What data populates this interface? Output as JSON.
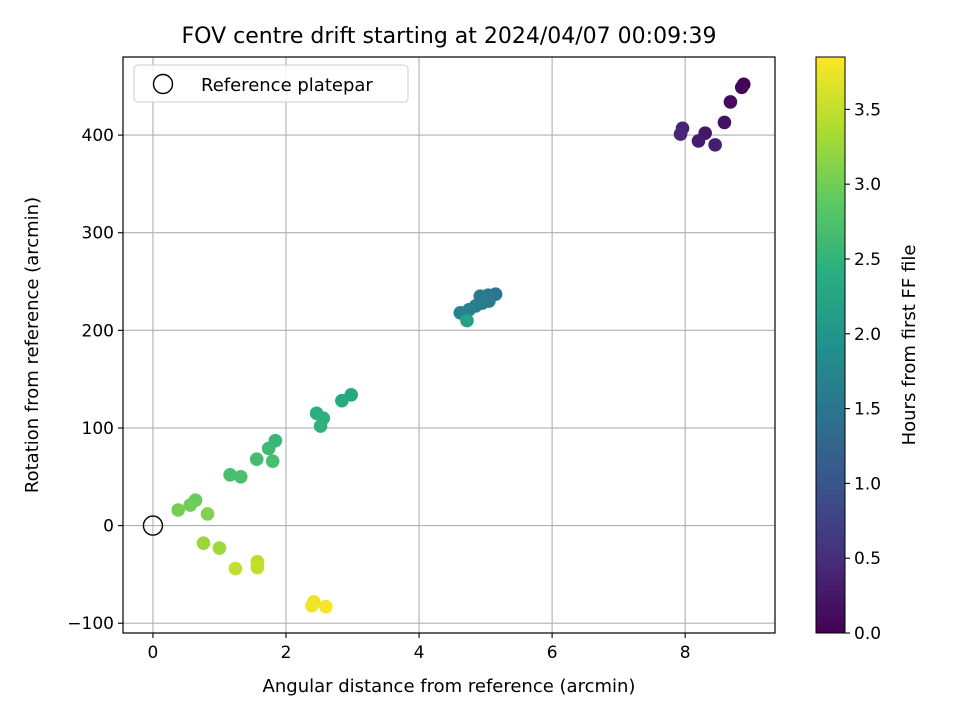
{
  "chart_data": {
    "type": "scatter",
    "title": "FOV centre drift starting at 2024/04/07 00:09:39",
    "xlabel": "Angular distance from reference (arcmin)",
    "ylabel": "Rotation from reference (arcmin)",
    "xlim": [
      -0.45,
      9.35
    ],
    "ylim": [
      -110,
      480
    ],
    "xticks": [
      0,
      2,
      4,
      6,
      8
    ],
    "xtick_labels": [
      "0",
      "2",
      "4",
      "6",
      "8"
    ],
    "yticks": [
      -100,
      0,
      100,
      200,
      300,
      400
    ],
    "ytick_labels": [
      "−100",
      "0",
      "100",
      "200",
      "300",
      "400"
    ],
    "grid": true,
    "legend": {
      "placement": "top-left",
      "entries": [
        {
          "label": "Reference platepar",
          "marker": "open-circle",
          "x": 0,
          "y": 0
        }
      ]
    },
    "colorbar": {
      "label": "Hours from first FF file",
      "colormap": "viridis",
      "range": [
        0,
        3.85
      ],
      "ticks": [
        0.0,
        0.5,
        1.0,
        1.5,
        2.0,
        2.5,
        3.0,
        3.5
      ],
      "tick_labels": [
        "0.0",
        "0.5",
        "1.0",
        "1.5",
        "2.0",
        "2.5",
        "3.0",
        "3.5"
      ]
    },
    "points": [
      {
        "x": 8.88,
        "y": 452,
        "hours": 0.0
      },
      {
        "x": 8.85,
        "y": 449,
        "hours": 0.05
      },
      {
        "x": 8.68,
        "y": 434,
        "hours": 0.12
      },
      {
        "x": 8.59,
        "y": 413,
        "hours": 0.18
      },
      {
        "x": 8.3,
        "y": 402,
        "hours": 0.24
      },
      {
        "x": 8.2,
        "y": 394,
        "hours": 0.3
      },
      {
        "x": 8.45,
        "y": 390,
        "hours": 0.34
      },
      {
        "x": 7.96,
        "y": 407,
        "hours": 0.38
      },
      {
        "x": 7.93,
        "y": 401,
        "hours": 0.42
      },
      {
        "x": 5.15,
        "y": 237,
        "hours": 1.5
      },
      {
        "x": 5.04,
        "y": 236,
        "hours": 1.52
      },
      {
        "x": 4.92,
        "y": 235,
        "hours": 1.55
      },
      {
        "x": 5.05,
        "y": 230,
        "hours": 1.57
      },
      {
        "x": 4.95,
        "y": 228,
        "hours": 1.6
      },
      {
        "x": 4.85,
        "y": 225,
        "hours": 1.63
      },
      {
        "x": 4.75,
        "y": 221,
        "hours": 1.66
      },
      {
        "x": 4.62,
        "y": 218,
        "hours": 1.7
      },
      {
        "x": 4.72,
        "y": 210,
        "hours": 2.2
      },
      {
        "x": 2.98,
        "y": 134,
        "hours": 2.3
      },
      {
        "x": 2.84,
        "y": 128,
        "hours": 2.35
      },
      {
        "x": 2.46,
        "y": 115,
        "hours": 2.4
      },
      {
        "x": 2.56,
        "y": 110,
        "hours": 2.43
      },
      {
        "x": 2.52,
        "y": 102,
        "hours": 2.46
      },
      {
        "x": 1.84,
        "y": 87,
        "hours": 2.55
      },
      {
        "x": 1.74,
        "y": 79,
        "hours": 2.6
      },
      {
        "x": 1.56,
        "y": 68,
        "hours": 2.65
      },
      {
        "x": 1.8,
        "y": 66,
        "hours": 2.68
      },
      {
        "x": 1.16,
        "y": 52,
        "hours": 2.7
      },
      {
        "x": 1.32,
        "y": 50,
        "hours": 2.73
      },
      {
        "x": 0.64,
        "y": 26,
        "hours": 2.95
      },
      {
        "x": 0.56,
        "y": 21,
        "hours": 2.98
      },
      {
        "x": 0.38,
        "y": 16,
        "hours": 3.02
      },
      {
        "x": 0.82,
        "y": 12,
        "hours": 3.1
      },
      {
        "x": 0.76,
        "y": -18,
        "hours": 3.25
      },
      {
        "x": 1.0,
        "y": -23,
        "hours": 3.28
      },
      {
        "x": 1.57,
        "y": -37,
        "hours": 3.45
      },
      {
        "x": 1.57,
        "y": -43,
        "hours": 3.48
      },
      {
        "x": 1.24,
        "y": -44,
        "hours": 3.5
      },
      {
        "x": 2.42,
        "y": -78,
        "hours": 3.75
      },
      {
        "x": 2.39,
        "y": -82,
        "hours": 3.78
      },
      {
        "x": 2.6,
        "y": -83,
        "hours": 3.82
      }
    ]
  }
}
